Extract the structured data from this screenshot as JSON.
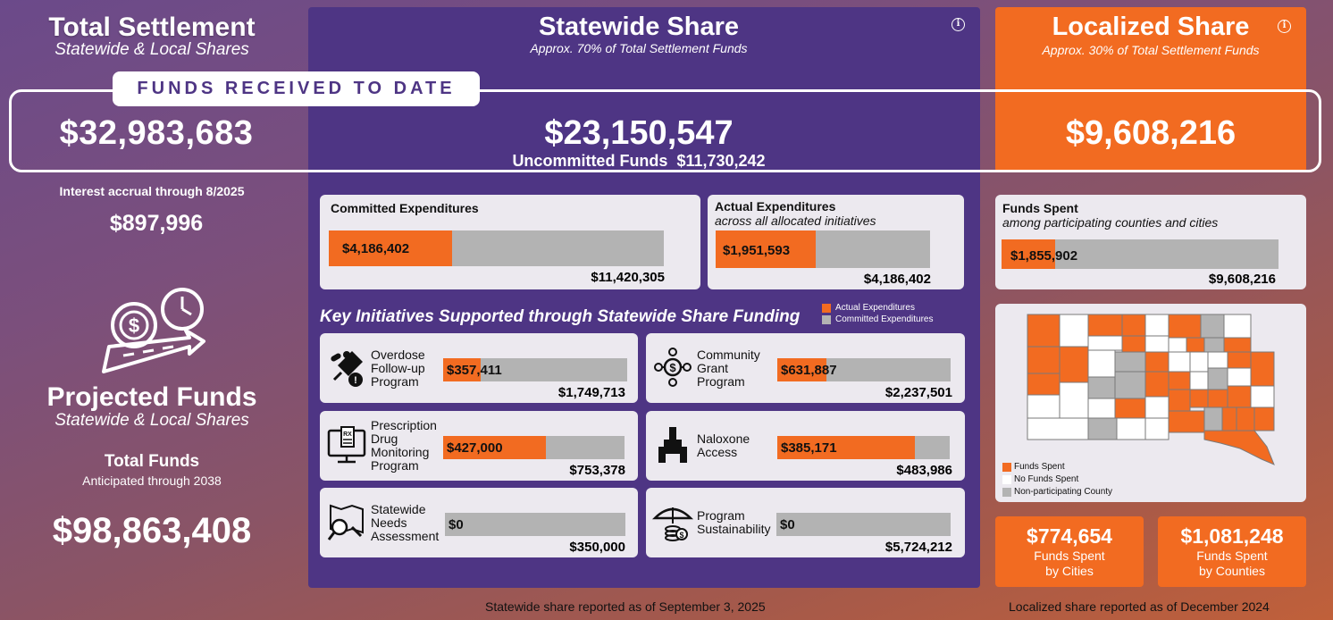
{
  "total": {
    "title": "Total Settlement",
    "subtitle": "Statewide & Local Shares",
    "amount": "$32,983,683",
    "interest_label": "Interest accrual through 8/2025",
    "interest_value": "$897,996"
  },
  "projected": {
    "title": "Projected Funds",
    "subtitle": "Statewide & Local Shares",
    "total_label": "Total Funds",
    "total_sub": "Anticipated through 2038",
    "total_value": "$98,863,408"
  },
  "funds_received_label": "FUNDS RECEIVED TO DATE",
  "info_glyph": "i",
  "statewide": {
    "title": "Statewide Share",
    "subtitle": "Approx. 70% of Total Settlement Funds",
    "amount": "$23,150,547",
    "uncommitted_label": "Uncommitted Funds",
    "uncommitted_value": "$11,730,242",
    "committed": {
      "title": "Committed Expenditures",
      "value": "$4,186,402",
      "total": "$11,420,305",
      "fraction": 0.367
    },
    "actual": {
      "title": "Actual Expenditures",
      "subtitle": "across all allocated initiatives",
      "value": "$1,951,593",
      "total": "$4,186,402",
      "fraction": 0.466
    },
    "initiatives_title": "Key Initiatives Supported through Statewide Share Funding",
    "legend": {
      "actual": "Actual Expenditures",
      "committed": "Committed Expenditures"
    },
    "initiatives": [
      {
        "label": "Overdose Follow-up Program",
        "lines": [
          "Overdose",
          "Follow-up",
          "Program"
        ],
        "icon": "pills-syringe-icon",
        "value": "$357,411",
        "total": "$1,749,713",
        "fraction": 0.204
      },
      {
        "label": "Community Grant Program",
        "lines": [
          "Community",
          "Grant",
          "Program"
        ],
        "icon": "community-money-icon",
        "value": "$631,887",
        "total": "$2,237,501",
        "fraction": 0.282
      },
      {
        "label": "Prescription Drug Monitoring Program",
        "lines": [
          "Prescription",
          "Drug",
          "Monitoring",
          "Program"
        ],
        "icon": "rx-monitor-icon",
        "value": "$427,000",
        "total": "$753,378",
        "fraction": 0.567
      },
      {
        "label": "Naloxone Access",
        "lines": [
          "Naloxone",
          "Access"
        ],
        "icon": "nasal-spray-icon",
        "value": "$385,171",
        "total": "$483,986",
        "fraction": 0.796
      },
      {
        "label": "Statewide Needs Assessment",
        "lines": [
          "Statewide",
          "Needs",
          "Assessment"
        ],
        "icon": "map-magnifier-icon",
        "value": "$0",
        "total": "$350,000",
        "fraction": 0
      },
      {
        "label": "Program Sustainability",
        "lines": [
          "Program",
          "Sustainability"
        ],
        "icon": "umbrella-coins-icon",
        "value": "$0",
        "total": "$5,724,212",
        "fraction": 0
      }
    ],
    "footer": "Statewide share reported as of September 3, 2025"
  },
  "localized": {
    "title": "Localized Share",
    "subtitle": "Approx. 30% of Total Settlement Funds",
    "amount": "$9,608,216",
    "spent": {
      "title": "Funds Spent",
      "subtitle": "among participating counties and cities",
      "value": "$1,855,902",
      "total": "$9,608,216",
      "fraction": 0.193
    },
    "map_legend": {
      "spent": "Funds Spent",
      "none": "No Funds Spent",
      "nonpart": "Non-participating County"
    },
    "cities": {
      "value": "$774,654",
      "label1": "Funds Spent",
      "label2": "by Cities"
    },
    "counties": {
      "value": "$1,081,248",
      "label1": "Funds Spent",
      "label2": "by Counties"
    },
    "footer": "Localized share reported as of December 2024"
  },
  "colors": {
    "orange": "#f26b21",
    "purple": "#4e3584",
    "gray": "#b3b3b3",
    "card": "#ece9ef"
  }
}
